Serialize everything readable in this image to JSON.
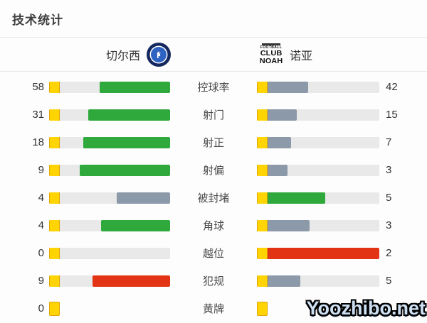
{
  "page": {
    "title": "技术统计"
  },
  "header": {
    "home_team": {
      "name": "切尔西",
      "logo": "chelsea-badge"
    },
    "away_team": {
      "name": "诺亚",
      "logo_lines": [
        "FOOTBALL",
        "CLUB",
        "NOAH"
      ]
    }
  },
  "colors": {
    "green": "#2fa93c",
    "slate": "#8c99a9",
    "red": "#e23414",
    "track": "#e9e9e9",
    "yellow_card": "#ffd400"
  },
  "rows": [
    {
      "label": "控球率",
      "home": {
        "value": "58",
        "pct": 58,
        "color": "green"
      },
      "away": {
        "value": "42",
        "pct": 42,
        "color": "slate"
      }
    },
    {
      "label": "射门",
      "home": {
        "value": "31",
        "pct": 67.4,
        "color": "green"
      },
      "away": {
        "value": "15",
        "pct": 32.6,
        "color": "slate"
      }
    },
    {
      "label": "射正",
      "home": {
        "value": "18",
        "pct": 72,
        "color": "green"
      },
      "away": {
        "value": "7",
        "pct": 28,
        "color": "slate"
      }
    },
    {
      "label": "射偏",
      "home": {
        "value": "9",
        "pct": 75,
        "color": "green"
      },
      "away": {
        "value": "3",
        "pct": 25,
        "color": "slate"
      }
    },
    {
      "label": "被封堵",
      "home": {
        "value": "4",
        "pct": 44.4,
        "color": "slate"
      },
      "away": {
        "value": "5",
        "pct": 55.6,
        "color": "green"
      }
    },
    {
      "label": "角球",
      "home": {
        "value": "4",
        "pct": 57.1,
        "color": "green"
      },
      "away": {
        "value": "3",
        "pct": 42.9,
        "color": "slate"
      }
    },
    {
      "label": "越位",
      "home": {
        "value": "0",
        "pct": 0,
        "color": "none"
      },
      "away": {
        "value": "2",
        "pct": 100,
        "color": "red"
      }
    },
    {
      "label": "犯规",
      "home": {
        "value": "9",
        "pct": 64.3,
        "color": "red"
      },
      "away": {
        "value": "5",
        "pct": 35.7,
        "color": "slate"
      }
    },
    {
      "label": "黄牌",
      "home": {
        "value": "0",
        "pct": 0,
        "color": "none",
        "track": false
      },
      "away": {
        "value": "",
        "pct": 0,
        "color": "none",
        "track": false,
        "card": true
      }
    }
  ],
  "watermark": {
    "text": "Yoozhibo.net"
  },
  "chart_data": {
    "type": "bar",
    "title": "技术统计",
    "categories": [
      "控球率",
      "射门",
      "射正",
      "射偏",
      "被封堵",
      "角球",
      "越位",
      "犯规",
      "黄牌"
    ],
    "series": [
      {
        "name": "切尔西",
        "values": [
          58,
          31,
          18,
          9,
          4,
          4,
          0,
          9,
          0
        ]
      },
      {
        "name": "诺亚",
        "values": [
          42,
          15,
          7,
          3,
          5,
          3,
          2,
          5,
          null
        ]
      }
    ],
    "layout": "paired horizontal bars; each side's fill length = value / (home+away) of that row; home bars anchored right, away bars anchored left; green = better side, slate = lesser side, red = negative stat leader, yellow square = yellow card"
  }
}
